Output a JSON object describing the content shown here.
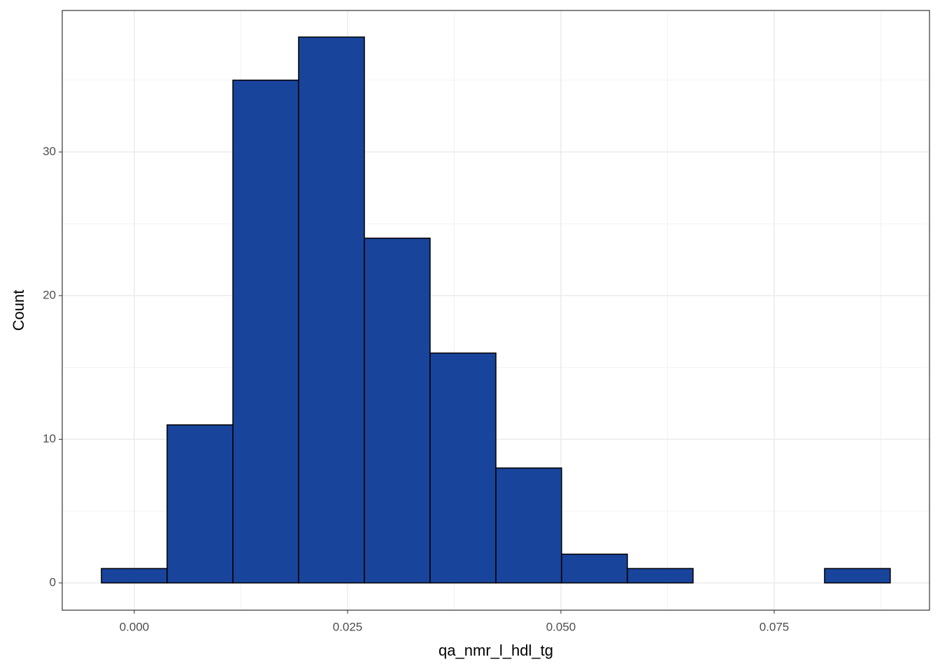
{
  "chart_data": {
    "type": "histogram",
    "x_label": "qa_nmr_l_hdl_tg",
    "y_label": "Count",
    "bins": [
      -0.00385,
      0.00385,
      0.01156,
      0.01926,
      0.02697,
      0.03467,
      0.04238,
      0.05008,
      0.05779,
      0.06549,
      0.0732,
      0.0809,
      0.0886
    ],
    "values": [
      1,
      11,
      35,
      38,
      24,
      16,
      8,
      2,
      1,
      0,
      0,
      1
    ],
    "color": "#18449b",
    "xlim": [
      -0.00844,
      0.0932
    ],
    "xticks": [
      {
        "value": 0,
        "label": "0.000"
      },
      {
        "value": 0.025,
        "label": "0.025"
      },
      {
        "value": 0.05,
        "label": "0.050"
      },
      {
        "value": 0.075,
        "label": "0.075"
      }
    ],
    "ylim": [
      -1.9,
      39.85
    ],
    "yticks": [
      0,
      10,
      20,
      30
    ],
    "grid": true
  }
}
